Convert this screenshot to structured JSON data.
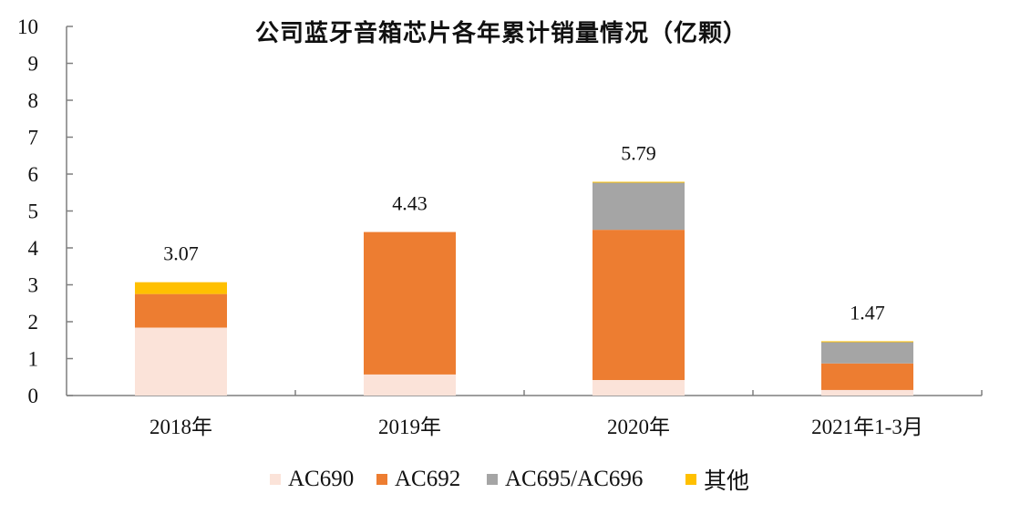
{
  "chart_data": {
    "type": "bar",
    "stacked": true,
    "title": "公司蓝牙音箱芯片各年累计销量情况（亿颗）",
    "xlabel": "",
    "ylabel": "",
    "ylim": [
      0,
      10
    ],
    "yticks": [
      0,
      1,
      2,
      3,
      4,
      5,
      6,
      7,
      8,
      9,
      10
    ],
    "grid": false,
    "legend_position": "bottom",
    "categories": [
      "2018年",
      "2019年",
      "2020年",
      "2021年1-3月"
    ],
    "series": [
      {
        "name": "AC690",
        "color": "#FBE3D9",
        "values": [
          1.84,
          0.57,
          0.42,
          0.15
        ]
      },
      {
        "name": "AC692",
        "color": "#ED7D31",
        "values": [
          0.91,
          3.86,
          4.07,
          0.72
        ]
      },
      {
        "name": "AC695/AC696",
        "color": "#A5A5A5",
        "values": [
          0,
          0,
          1.28,
          0.59
        ]
      },
      {
        "name": "其他",
        "color": "#FFC000",
        "values": [
          0.32,
          0,
          0.02,
          0.01
        ]
      }
    ],
    "totals": [
      3.07,
      4.43,
      5.79,
      1.47
    ],
    "total_labels": [
      "3.07",
      "4.43",
      "5.79",
      "1.47"
    ]
  }
}
